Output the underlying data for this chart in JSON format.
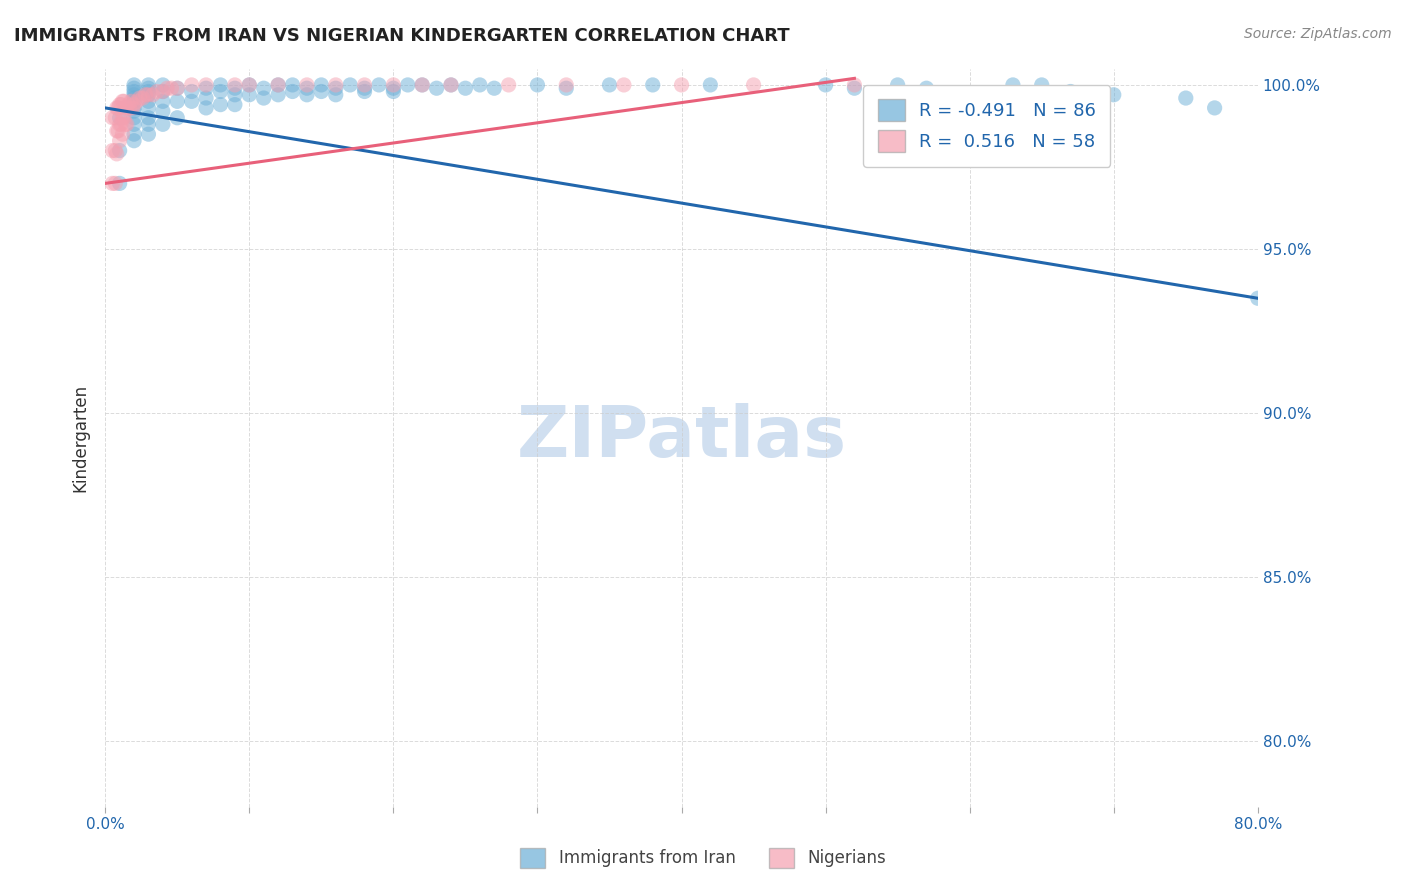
{
  "title": "IMMIGRANTS FROM IRAN VS NIGERIAN KINDERGARTEN CORRELATION CHART",
  "source": "Source: ZipAtlas.com",
  "ylabel": "Kindergarten",
  "xlabel": "",
  "xlim": [
    0.0,
    0.8
  ],
  "ylim": [
    0.78,
    1.005
  ],
  "xticks": [
    0.0,
    0.1,
    0.2,
    0.3,
    0.4,
    0.5,
    0.6,
    0.7,
    0.8
  ],
  "xticklabels": [
    "0.0%",
    "",
    "",
    "",
    "",
    "",
    "",
    "",
    "80.0%"
  ],
  "ytick_positions": [
    0.8,
    0.85,
    0.9,
    0.95,
    1.0
  ],
  "yticklabels": [
    "80.0%",
    "85.0%",
    "90.0%",
    "95.0%",
    "100.0%"
  ],
  "blue_R": -0.491,
  "blue_N": 86,
  "pink_R": 0.516,
  "pink_N": 58,
  "blue_color": "#6baed6",
  "pink_color": "#f4a0b0",
  "blue_line_color": "#2166ac",
  "pink_line_color": "#e8607a",
  "watermark": "ZIPatlas",
  "watermark_color": "#d0dff0",
  "legend_box_color": "#f0f5ff",
  "blue_scatter_x": [
    0.01,
    0.01,
    0.01,
    0.02,
    0.02,
    0.02,
    0.02,
    0.02,
    0.02,
    0.02,
    0.02,
    0.02,
    0.02,
    0.02,
    0.02,
    0.03,
    0.03,
    0.03,
    0.03,
    0.03,
    0.03,
    0.03,
    0.03,
    0.03,
    0.04,
    0.04,
    0.04,
    0.04,
    0.04,
    0.05,
    0.05,
    0.05,
    0.06,
    0.06,
    0.07,
    0.07,
    0.07,
    0.08,
    0.08,
    0.08,
    0.09,
    0.09,
    0.09,
    0.1,
    0.1,
    0.11,
    0.11,
    0.12,
    0.12,
    0.13,
    0.13,
    0.14,
    0.14,
    0.15,
    0.15,
    0.16,
    0.16,
    0.17,
    0.18,
    0.18,
    0.19,
    0.2,
    0.2,
    0.21,
    0.22,
    0.23,
    0.24,
    0.25,
    0.26,
    0.27,
    0.3,
    0.32,
    0.35,
    0.38,
    0.42,
    0.5,
    0.52,
    0.55,
    0.57,
    0.63,
    0.65,
    0.67,
    0.7,
    0.75,
    0.77,
    0.8
  ],
  "blue_scatter_y": [
    0.99,
    0.98,
    0.97,
    1.0,
    0.999,
    0.998,
    0.997,
    0.996,
    0.995,
    0.993,
    0.992,
    0.99,
    0.988,
    0.985,
    0.983,
    1.0,
    0.999,
    0.998,
    0.997,
    0.995,
    0.993,
    0.99,
    0.988,
    0.985,
    1.0,
    0.998,
    0.995,
    0.992,
    0.988,
    0.999,
    0.995,
    0.99,
    0.998,
    0.995,
    0.999,
    0.996,
    0.993,
    1.0,
    0.998,
    0.994,
    0.999,
    0.997,
    0.994,
    1.0,
    0.997,
    0.999,
    0.996,
    1.0,
    0.997,
    1.0,
    0.998,
    0.999,
    0.997,
    1.0,
    0.998,
    0.999,
    0.997,
    1.0,
    0.999,
    0.998,
    1.0,
    0.999,
    0.998,
    1.0,
    1.0,
    0.999,
    1.0,
    0.999,
    1.0,
    0.999,
    1.0,
    0.999,
    1.0,
    1.0,
    1.0,
    1.0,
    0.999,
    1.0,
    0.999,
    1.0,
    1.0,
    0.998,
    0.997,
    0.996,
    0.993,
    0.935
  ],
  "pink_scatter_x": [
    0.005,
    0.005,
    0.005,
    0.007,
    0.007,
    0.007,
    0.008,
    0.008,
    0.008,
    0.009,
    0.009,
    0.01,
    0.01,
    0.01,
    0.011,
    0.011,
    0.012,
    0.012,
    0.012,
    0.013,
    0.013,
    0.014,
    0.014,
    0.015,
    0.015,
    0.016,
    0.017,
    0.018,
    0.019,
    0.02,
    0.022,
    0.024,
    0.026,
    0.028,
    0.03,
    0.033,
    0.036,
    0.04,
    0.043,
    0.046,
    0.05,
    0.06,
    0.07,
    0.09,
    0.1,
    0.12,
    0.14,
    0.16,
    0.18,
    0.2,
    0.22,
    0.24,
    0.28,
    0.32,
    0.36,
    0.4,
    0.45,
    0.52
  ],
  "pink_scatter_y": [
    0.99,
    0.98,
    0.97,
    0.99,
    0.98,
    0.97,
    0.993,
    0.986,
    0.979,
    0.993,
    0.986,
    0.994,
    0.988,
    0.983,
    0.994,
    0.988,
    0.995,
    0.99,
    0.985,
    0.995,
    0.99,
    0.993,
    0.988,
    0.993,
    0.988,
    0.994,
    0.993,
    0.995,
    0.993,
    0.994,
    0.995,
    0.996,
    0.996,
    0.997,
    0.997,
    0.997,
    0.998,
    0.998,
    0.999,
    0.999,
    0.999,
    1.0,
    1.0,
    1.0,
    1.0,
    1.0,
    1.0,
    1.0,
    1.0,
    1.0,
    1.0,
    1.0,
    1.0,
    1.0,
    1.0,
    1.0,
    1.0,
    1.0
  ],
  "blue_line_x0": 0.0,
  "blue_line_y0": 0.993,
  "blue_line_x1": 0.8,
  "blue_line_y1": 0.935,
  "pink_line_x0": 0.0,
  "pink_line_y0": 0.97,
  "pink_line_x1": 0.52,
  "pink_line_y1": 1.002,
  "grid_color": "#cccccc",
  "bg_color": "#ffffff"
}
